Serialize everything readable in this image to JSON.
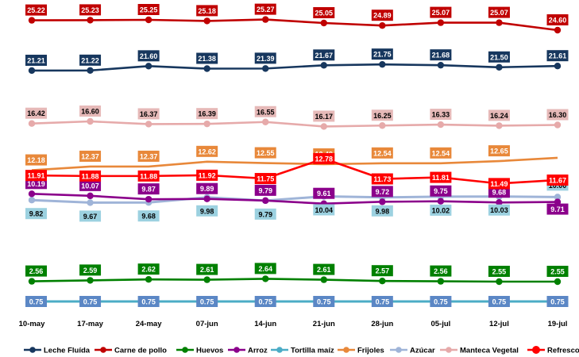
{
  "chart_data": {
    "type": "line",
    "title": "",
    "xlabel": "",
    "ylabel": "",
    "grid": false,
    "legend_position": "bottom",
    "categories": [
      "10-may",
      "17-may",
      "24-may",
      "07-jun",
      "14-jun",
      "21-jun",
      "28-jun",
      "05-jul",
      "12-jul",
      "19-jul"
    ],
    "series": [
      {
        "name": "Leche Fluída",
        "color": "#17375E",
        "label_bg": "#17375E",
        "label_fg": "#FFFFFF",
        "label_pos": "above",
        "values": [
          21.21,
          21.22,
          21.6,
          21.38,
          21.39,
          21.67,
          21.75,
          21.68,
          21.5,
          21.61
        ]
      },
      {
        "name": "Carne de pollo",
        "color": "#C00000",
        "label_bg": "#C00000",
        "label_fg": "#FFFFFF",
        "label_pos": "above",
        "values": [
          25.22,
          25.23,
          25.25,
          25.18,
          25.27,
          25.05,
          24.89,
          25.07,
          25.07,
          24.6
        ]
      },
      {
        "name": "Huevos",
        "color": "#008000",
        "label_bg": "#008000",
        "label_fg": "#FFFFFF",
        "label_pos": "above",
        "values": [
          2.56,
          2.59,
          2.62,
          2.61,
          2.64,
          2.61,
          2.57,
          2.56,
          2.55,
          2.55
        ]
      },
      {
        "name": "Arroz",
        "color": "#8B008B",
        "label_bg": "#8B008B",
        "label_fg": "#FFFFFF",
        "label_pos": "above",
        "values": [
          10.19,
          10.07,
          9.87,
          9.89,
          9.79,
          9.61,
          9.72,
          9.75,
          9.68,
          9.71
        ]
      },
      {
        "name": "Tortilla maíz",
        "color": "#4BACC6",
        "label_bg": "#5B87C5",
        "label_fg": "#FFFFFF",
        "label_pos": "above",
        "values": [
          0.75,
          0.75,
          0.75,
          0.75,
          0.75,
          0.75,
          0.75,
          0.75,
          0.75,
          0.75
        ]
      },
      {
        "name": "Frijoles",
        "color": "#E8883A",
        "label_bg": "#E8883A",
        "label_fg": "#FFFFFF",
        "label_pos": "above",
        "values": [
          12.18,
          12.37,
          12.37,
          12.62,
          12.55,
          12.49,
          12.54,
          12.54,
          12.65,
          null
        ]
      },
      {
        "name": "Azúcar",
        "color": "#9FB4D8",
        "label_bg": "#9CD1E0",
        "label_fg": "#000000",
        "label_pos": "below",
        "values": [
          9.82,
          9.67,
          9.68,
          9.98,
          9.79,
          10.04,
          9.98,
          10.02,
          10.03,
          10.0
        ]
      },
      {
        "name": "Manteca Vegetal",
        "color": "#E6AAAA",
        "label_bg": "#E6B9B8",
        "label_fg": "#000000",
        "label_pos": "above",
        "values": [
          16.42,
          16.6,
          16.37,
          16.39,
          16.55,
          16.17,
          16.25,
          16.33,
          16.24,
          16.3
        ]
      },
      {
        "name": "Refrescos",
        "color": "#FF0000",
        "label_bg": "#FF0000",
        "label_fg": "#FFFFFF",
        "label_pos": "above",
        "values": [
          11.91,
          11.88,
          11.88,
          11.92,
          11.75,
          12.78,
          11.73,
          11.81,
          11.49,
          11.67
        ]
      }
    ],
    "legend": [
      "Leche Fluída",
      "Carne de pollo",
      "Huevos",
      "Arroz",
      "Tortilla maíz",
      "Frijoles",
      "Azúcar",
      "Manteca Vegetal",
      "Refrescos"
    ]
  }
}
